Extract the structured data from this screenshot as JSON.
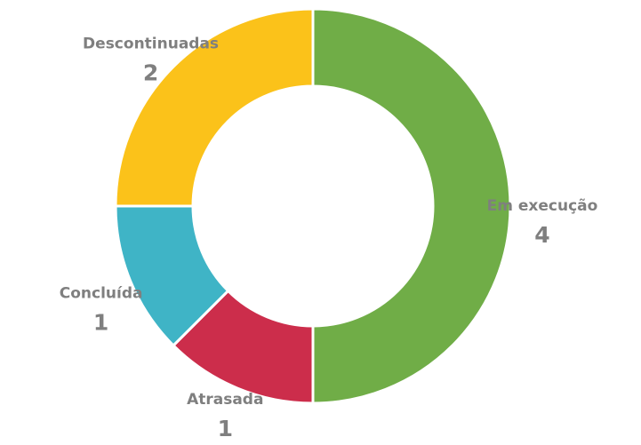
{
  "chart_data": {
    "type": "donut",
    "categories": [
      "Em execução",
      "Atrasada",
      "Concluída",
      "Descontinuadas"
    ],
    "values": [
      4,
      1,
      1,
      2
    ],
    "colors": [
      "#70ad47",
      "#cc2d4b",
      "#3fb4c6",
      "#fbc21a"
    ]
  }
}
